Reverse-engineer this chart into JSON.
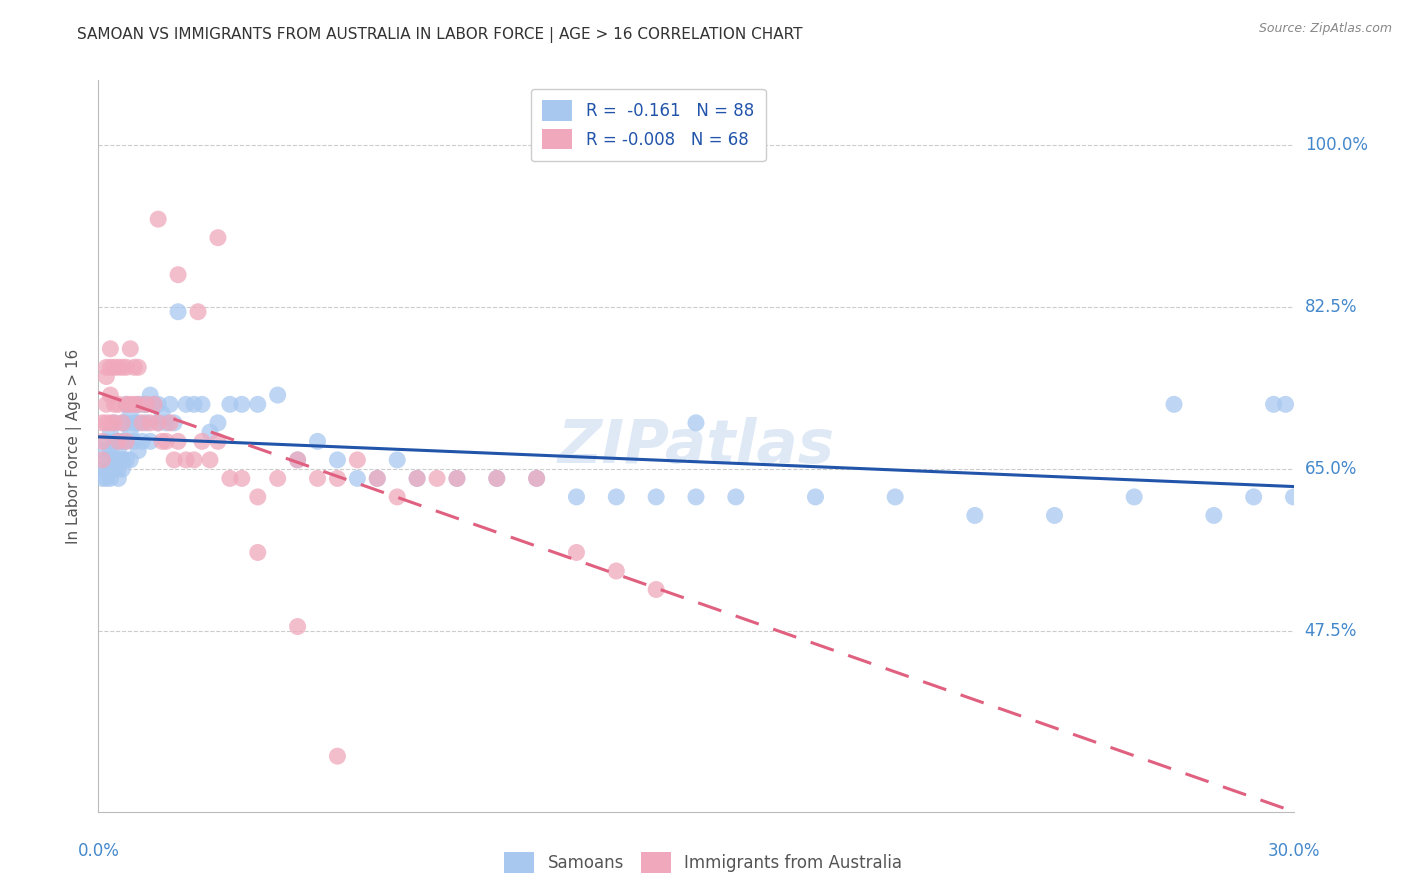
{
  "title": "SAMOAN VS IMMIGRANTS FROM AUSTRALIA IN LABOR FORCE | AGE > 16 CORRELATION CHART",
  "source": "Source: ZipAtlas.com",
  "ylabel": "In Labor Force | Age > 16",
  "yticks": [
    0.475,
    0.65,
    0.825,
    1.0
  ],
  "ytick_labels": [
    "47.5%",
    "65.0%",
    "82.5%",
    "100.0%"
  ],
  "xmin": 0.0,
  "xmax": 0.3,
  "ymin": 0.28,
  "ymax": 1.07,
  "blue_color": "#A8C8F0",
  "pink_color": "#F0A8BC",
  "blue_line_color": "#2255AA",
  "pink_line_color": "#E06080",
  "axis_label_color": "#4488CC",
  "watermark": "ZIPatlas",
  "blue_r": -0.161,
  "blue_n": 88,
  "pink_r": -0.008,
  "pink_n": 68,
  "samoans_x": [
    0.001,
    0.001,
    0.001,
    0.002,
    0.002,
    0.002,
    0.002,
    0.003,
    0.003,
    0.003,
    0.003,
    0.003,
    0.004,
    0.004,
    0.004,
    0.004,
    0.005,
    0.005,
    0.005,
    0.005,
    0.005,
    0.006,
    0.006,
    0.006,
    0.006,
    0.006,
    0.007,
    0.007,
    0.007,
    0.007,
    0.008,
    0.008,
    0.008,
    0.009,
    0.009,
    0.01,
    0.01,
    0.01,
    0.011,
    0.011,
    0.012,
    0.012,
    0.013,
    0.013,
    0.014,
    0.015,
    0.015,
    0.016,
    0.017,
    0.018,
    0.019,
    0.02,
    0.022,
    0.024,
    0.026,
    0.028,
    0.03,
    0.033,
    0.036,
    0.04,
    0.045,
    0.05,
    0.055,
    0.06,
    0.065,
    0.07,
    0.075,
    0.08,
    0.09,
    0.1,
    0.11,
    0.12,
    0.13,
    0.14,
    0.15,
    0.16,
    0.18,
    0.2,
    0.22,
    0.24,
    0.26,
    0.27,
    0.28,
    0.29,
    0.295,
    0.298,
    0.3,
    0.15
  ],
  "samoans_y": [
    0.67,
    0.65,
    0.64,
    0.66,
    0.65,
    0.68,
    0.64,
    0.67,
    0.66,
    0.69,
    0.65,
    0.64,
    0.68,
    0.66,
    0.7,
    0.65,
    0.67,
    0.66,
    0.68,
    0.65,
    0.64,
    0.68,
    0.66,
    0.7,
    0.66,
    0.65,
    0.72,
    0.7,
    0.68,
    0.66,
    0.71,
    0.69,
    0.66,
    0.7,
    0.68,
    0.72,
    0.7,
    0.67,
    0.72,
    0.68,
    0.7,
    0.72,
    0.73,
    0.68,
    0.72,
    0.72,
    0.7,
    0.71,
    0.7,
    0.72,
    0.7,
    0.82,
    0.72,
    0.72,
    0.72,
    0.69,
    0.7,
    0.72,
    0.72,
    0.72,
    0.73,
    0.66,
    0.68,
    0.66,
    0.64,
    0.64,
    0.66,
    0.64,
    0.64,
    0.64,
    0.64,
    0.62,
    0.62,
    0.62,
    0.62,
    0.62,
    0.62,
    0.62,
    0.6,
    0.6,
    0.62,
    0.72,
    0.6,
    0.62,
    0.72,
    0.72,
    0.62,
    0.7
  ],
  "australia_x": [
    0.001,
    0.001,
    0.001,
    0.002,
    0.002,
    0.002,
    0.002,
    0.003,
    0.003,
    0.003,
    0.003,
    0.004,
    0.004,
    0.004,
    0.005,
    0.005,
    0.005,
    0.006,
    0.006,
    0.007,
    0.007,
    0.007,
    0.008,
    0.008,
    0.009,
    0.009,
    0.01,
    0.01,
    0.011,
    0.012,
    0.013,
    0.014,
    0.015,
    0.016,
    0.017,
    0.018,
    0.019,
    0.02,
    0.022,
    0.024,
    0.026,
    0.028,
    0.03,
    0.033,
    0.036,
    0.04,
    0.045,
    0.05,
    0.055,
    0.06,
    0.065,
    0.07,
    0.075,
    0.08,
    0.085,
    0.09,
    0.1,
    0.11,
    0.12,
    0.13,
    0.14,
    0.015,
    0.02,
    0.025,
    0.03,
    0.04,
    0.05,
    0.06
  ],
  "australia_y": [
    0.68,
    0.7,
    0.66,
    0.75,
    0.72,
    0.76,
    0.7,
    0.78,
    0.76,
    0.73,
    0.7,
    0.76,
    0.72,
    0.7,
    0.76,
    0.72,
    0.68,
    0.76,
    0.7,
    0.76,
    0.72,
    0.68,
    0.78,
    0.72,
    0.76,
    0.72,
    0.76,
    0.72,
    0.7,
    0.72,
    0.7,
    0.72,
    0.7,
    0.68,
    0.68,
    0.7,
    0.66,
    0.68,
    0.66,
    0.66,
    0.68,
    0.66,
    0.68,
    0.64,
    0.64,
    0.62,
    0.64,
    0.66,
    0.64,
    0.64,
    0.66,
    0.64,
    0.62,
    0.64,
    0.64,
    0.64,
    0.64,
    0.64,
    0.56,
    0.54,
    0.52,
    0.92,
    0.86,
    0.82,
    0.9,
    0.56,
    0.48,
    0.34
  ]
}
